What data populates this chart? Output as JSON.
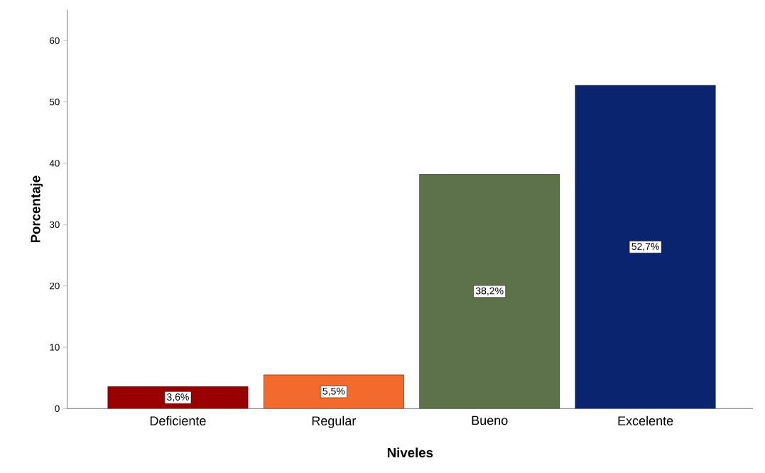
{
  "chart_data": {
    "type": "bar",
    "xlabel": "Niveles",
    "ylabel": "Porcentaje",
    "categories": [
      "Deficiente",
      "Regular",
      "Bueno",
      "Excelente"
    ],
    "values": [
      3.6,
      5.5,
      38.2,
      52.7
    ],
    "colors": [
      "#990000",
      "#f26b2d",
      "#5d714a",
      "#0a2470"
    ],
    "value_labels": [
      "3,6%",
      "5,5%",
      "38,2%",
      "52,7%"
    ],
    "ylim": [
      0,
      65
    ],
    "yticks": [
      0,
      10,
      20,
      30,
      40,
      50,
      60
    ],
    "grid": false
  }
}
